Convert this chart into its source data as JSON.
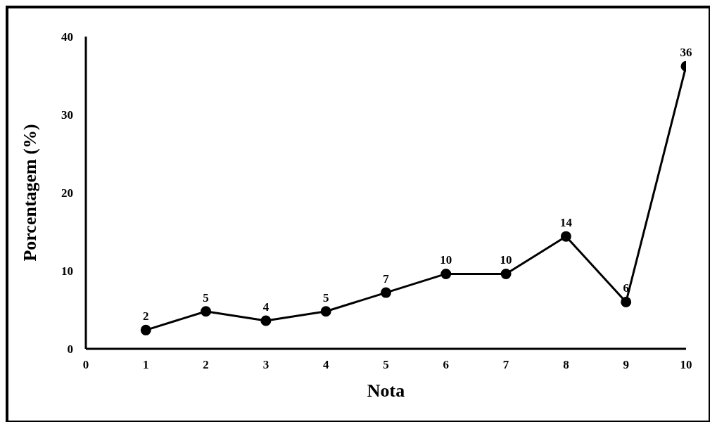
{
  "chart_data": {
    "type": "line",
    "xlabel": "Nota",
    "ylabel": "Porcentagem (%)",
    "x": [
      1,
      2,
      3,
      4,
      5,
      6,
      7,
      8,
      9,
      10
    ],
    "series": [
      {
        "color": "#000000",
        "values": [
          2.4,
          4.8,
          3.6,
          4.8,
          7.2,
          9.6,
          9.6,
          14.4,
          6.0,
          36.2
        ],
        "value_labels": [
          "2",
          "5",
          "4",
          "5",
          "7",
          "10",
          "10",
          "14",
          "6",
          "36"
        ]
      }
    ],
    "xlim": [
      0,
      10
    ],
    "xticks": [
      0,
      1,
      2,
      3,
      4,
      5,
      6,
      7,
      8,
      9,
      10
    ],
    "ylim": [
      0,
      40
    ],
    "yticks": [
      0,
      10,
      20,
      30,
      40
    ],
    "grid": false,
    "marker": "circle",
    "line_style": "solid"
  }
}
